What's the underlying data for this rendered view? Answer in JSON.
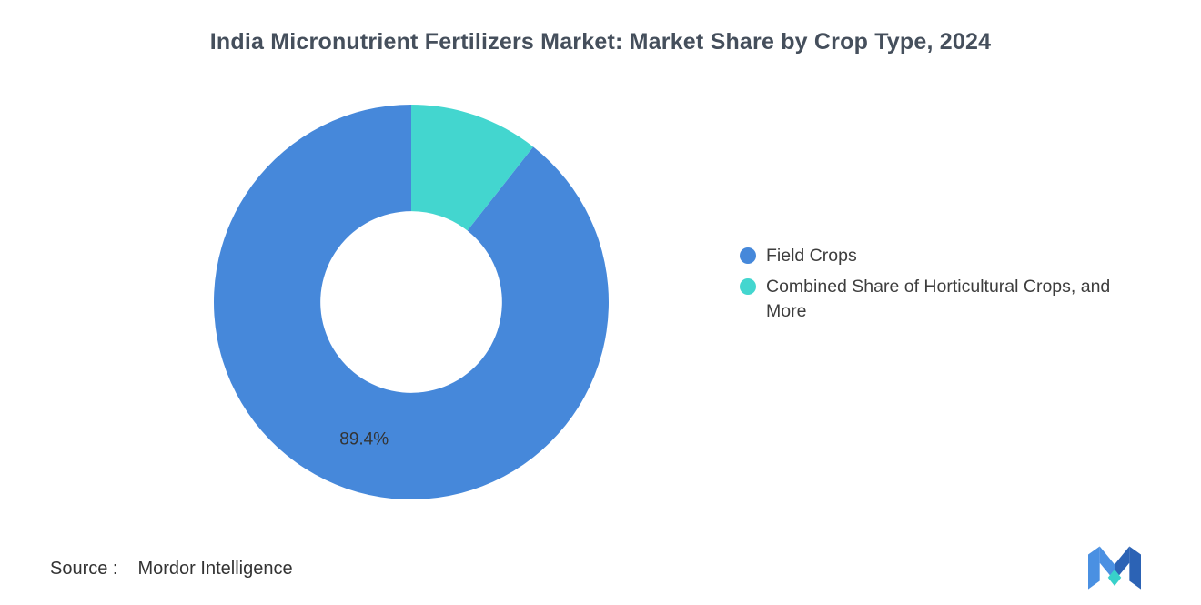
{
  "title": "India Micronutrient Fertilizers Market: Market Share by Crop Type, 2024",
  "source": {
    "label": "Source :",
    "value": "Mordor Intelligence"
  },
  "legend": {
    "position": "right",
    "items": [
      {
        "label": "Field Crops",
        "color": "#4688da"
      },
      {
        "label": "Combined Share of Horticultural Crops, and More",
        "color": "#43d6cf"
      }
    ]
  },
  "chart_data": {
    "type": "pie",
    "subtype": "donut",
    "title": "India Micronutrient Fertilizers Market: Market Share by Crop Type, 2024",
    "units": "%",
    "series": [
      {
        "name": "Field Crops",
        "value": 89.4,
        "color": "#4688da",
        "label": "89.4%"
      },
      {
        "name": "Combined Share of Horticultural Crops, and More",
        "value": 10.6,
        "color": "#43d6cf",
        "label": ""
      }
    ],
    "start_angle_deg": 38.16,
    "inner_radius_ratio": 0.46,
    "legend_position": "right",
    "grid": false
  },
  "logo": {
    "name": "mordor-intelligence-logo",
    "colors": {
      "blue_light": "#4a90e2",
      "blue_dark": "#2c63b5",
      "teal": "#38d1ca"
    }
  }
}
